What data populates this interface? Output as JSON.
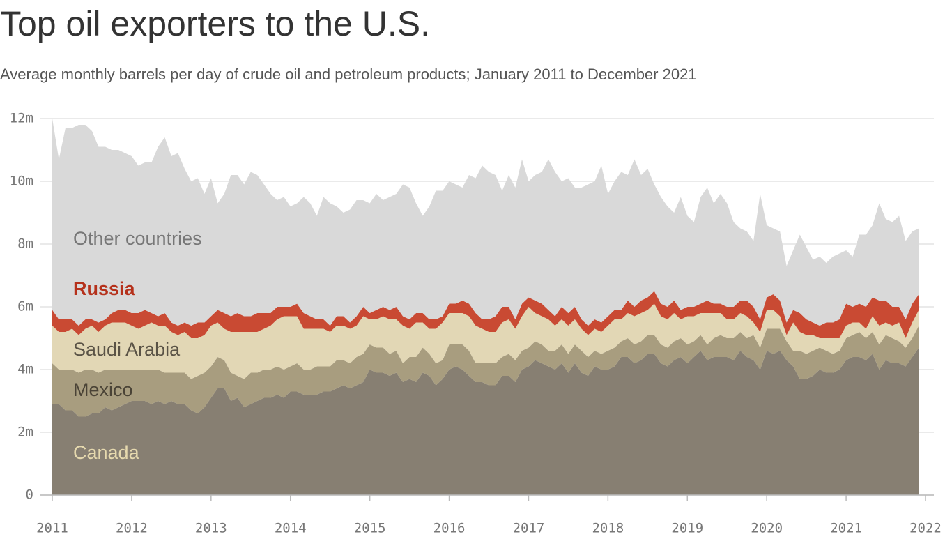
{
  "chart_data": {
    "type": "stacked-area",
    "title": "Top oil exporters to the U.S.",
    "subtitle": "Average monthly barrels per day of crude oil and petroleum products; January 2011 to December 2021",
    "x": [
      2011,
      2011.083,
      2011.167,
      2011.25,
      2011.333,
      2011.417,
      2011.5,
      2011.583,
      2011.667,
      2011.75,
      2011.833,
      2011.917,
      2012,
      2012.083,
      2012.167,
      2012.25,
      2012.333,
      2012.417,
      2012.5,
      2012.583,
      2012.667,
      2012.75,
      2012.833,
      2012.917,
      2013,
      2013.083,
      2013.167,
      2013.25,
      2013.333,
      2013.417,
      2013.5,
      2013.583,
      2013.667,
      2013.75,
      2013.833,
      2013.917,
      2014,
      2014.083,
      2014.167,
      2014.25,
      2014.333,
      2014.417,
      2014.5,
      2014.583,
      2014.667,
      2014.75,
      2014.833,
      2014.917,
      2015,
      2015.083,
      2015.167,
      2015.25,
      2015.333,
      2015.417,
      2015.5,
      2015.583,
      2015.667,
      2015.75,
      2015.833,
      2015.917,
      2016,
      2016.083,
      2016.167,
      2016.25,
      2016.333,
      2016.417,
      2016.5,
      2016.583,
      2016.667,
      2016.75,
      2016.833,
      2016.917,
      2017,
      2017.083,
      2017.167,
      2017.25,
      2017.333,
      2017.417,
      2017.5,
      2017.583,
      2017.667,
      2017.75,
      2017.833,
      2017.917,
      2018,
      2018.083,
      2018.167,
      2018.25,
      2018.333,
      2018.417,
      2018.5,
      2018.583,
      2018.667,
      2018.75,
      2018.833,
      2018.917,
      2019,
      2019.083,
      2019.167,
      2019.25,
      2019.333,
      2019.417,
      2019.5,
      2019.583,
      2019.667,
      2019.75,
      2019.833,
      2019.917,
      2020,
      2020.083,
      2020.167,
      2020.25,
      2020.333,
      2020.417,
      2020.5,
      2020.583,
      2020.667,
      2020.75,
      2020.833,
      2020.917,
      2021,
      2021.083,
      2021.167,
      2021.25,
      2021.333,
      2021.417,
      2021.5,
      2021.583,
      2021.667,
      2021.75,
      2021.833,
      2021.917
    ],
    "series": [
      {
        "name": "Canada",
        "color": "#877f72",
        "label_color": "#e6d9ae",
        "values": [
          2.9,
          2.9,
          2.7,
          2.7,
          2.5,
          2.5,
          2.6,
          2.6,
          2.8,
          2.7,
          2.8,
          2.9,
          3.0,
          3.0,
          3.0,
          2.9,
          3.0,
          2.9,
          3.0,
          2.9,
          2.9,
          2.7,
          2.6,
          2.8,
          3.1,
          3.4,
          3.4,
          3.0,
          3.1,
          2.8,
          2.9,
          3.0,
          3.1,
          3.1,
          3.2,
          3.1,
          3.3,
          3.3,
          3.2,
          3.2,
          3.2,
          3.3,
          3.3,
          3.4,
          3.5,
          3.4,
          3.5,
          3.6,
          4.0,
          3.9,
          3.9,
          3.8,
          3.9,
          3.6,
          3.7,
          3.6,
          3.9,
          3.8,
          3.5,
          3.7,
          4.0,
          4.1,
          4.0,
          3.8,
          3.6,
          3.6,
          3.5,
          3.5,
          3.8,
          3.8,
          3.6,
          4.0,
          4.1,
          4.3,
          4.2,
          4.1,
          4.0,
          4.2,
          3.9,
          4.2,
          3.9,
          3.8,
          4.1,
          4.0,
          4.0,
          4.1,
          4.4,
          4.4,
          4.2,
          4.3,
          4.5,
          4.5,
          4.2,
          4.1,
          4.3,
          4.4,
          4.2,
          4.4,
          4.6,
          4.3,
          4.4,
          4.4,
          4.4,
          4.3,
          4.6,
          4.4,
          4.3,
          4.0,
          4.6,
          4.5,
          4.6,
          4.3,
          4.1,
          3.7,
          3.7,
          3.8,
          4.0,
          3.9,
          3.9,
          4.0,
          4.3,
          4.4,
          4.4,
          4.3,
          4.5,
          4.0,
          4.3,
          4.2,
          4.2,
          4.1,
          4.4,
          4.7
        ]
      },
      {
        "name": "Mexico",
        "color": "#a89d7f",
        "label_color": "#4a4336",
        "values": [
          1.3,
          1.1,
          1.3,
          1.3,
          1.4,
          1.5,
          1.4,
          1.3,
          1.2,
          1.3,
          1.2,
          1.1,
          1.0,
          1.0,
          1.0,
          1.1,
          1.0,
          1.0,
          0.9,
          1.0,
          1.0,
          1.0,
          1.2,
          1.1,
          1.0,
          1.0,
          0.9,
          0.9,
          0.7,
          0.9,
          1.0,
          0.9,
          0.9,
          0.9,
          0.9,
          0.9,
          0.8,
          0.9,
          0.8,
          0.8,
          0.9,
          0.8,
          0.8,
          0.9,
          0.8,
          0.8,
          0.9,
          0.9,
          0.8,
          0.8,
          0.8,
          0.7,
          0.7,
          0.6,
          0.7,
          0.8,
          0.8,
          0.7,
          0.7,
          0.6,
          0.8,
          0.7,
          0.8,
          0.8,
          0.6,
          0.6,
          0.7,
          0.7,
          0.6,
          0.7,
          0.7,
          0.6,
          0.6,
          0.6,
          0.6,
          0.5,
          0.6,
          0.6,
          0.6,
          0.6,
          0.7,
          0.6,
          0.5,
          0.5,
          0.6,
          0.6,
          0.5,
          0.6,
          0.6,
          0.6,
          0.6,
          0.6,
          0.6,
          0.6,
          0.6,
          0.6,
          0.6,
          0.5,
          0.5,
          0.5,
          0.6,
          0.7,
          0.6,
          0.7,
          0.6,
          0.6,
          0.8,
          0.7,
          0.7,
          0.8,
          0.7,
          0.6,
          0.5,
          0.9,
          0.8,
          0.8,
          0.7,
          0.7,
          0.6,
          0.6,
          0.7,
          0.7,
          0.8,
          0.7,
          0.7,
          0.8,
          0.8,
          0.8,
          0.7,
          0.6,
          0.6,
          0.7
        ]
      },
      {
        "name": "Saudi Arabia",
        "color": "#e2d7b5",
        "label_color": "#5a5346",
        "values": [
          1.2,
          1.2,
          1.2,
          1.3,
          1.2,
          1.3,
          1.4,
          1.3,
          1.4,
          1.5,
          1.5,
          1.5,
          1.4,
          1.3,
          1.4,
          1.5,
          1.4,
          1.5,
          1.3,
          1.2,
          1.3,
          1.3,
          1.2,
          1.2,
          1.3,
          1.1,
          1.0,
          1.3,
          1.4,
          1.5,
          1.3,
          1.3,
          1.3,
          1.4,
          1.5,
          1.7,
          1.6,
          1.5,
          1.3,
          1.3,
          1.2,
          1.2,
          1.1,
          1.1,
          1.1,
          1.1,
          1.0,
          1.2,
          0.8,
          0.9,
          1.0,
          1.1,
          1.0,
          1.2,
          0.9,
          1.1,
          0.8,
          0.8,
          1.1,
          1.2,
          1.0,
          1.0,
          1.0,
          1.1,
          1.2,
          1.1,
          1.0,
          1.0,
          1.1,
          1.1,
          1.0,
          1.1,
          1.3,
          0.9,
          0.9,
          1.0,
          0.8,
          0.8,
          0.9,
          0.8,
          0.7,
          0.7,
          0.7,
          0.7,
          0.8,
          0.9,
          0.7,
          0.8,
          0.9,
          0.9,
          0.8,
          1.0,
          0.9,
          0.9,
          0.9,
          0.6,
          0.9,
          0.8,
          0.7,
          1.0,
          0.8,
          0.7,
          0.6,
          0.6,
          0.6,
          0.7,
          0.4,
          0.5,
          0.6,
          0.6,
          0.4,
          0.2,
          0.9,
          0.6,
          0.6,
          0.5,
          0.3,
          0.4,
          0.5,
          0.4,
          0.4,
          0.4,
          0.3,
          0.3,
          0.5,
          0.6,
          0.4,
          0.4,
          0.6,
          0.3,
          0.5,
          0.5
        ]
      },
      {
        "name": "Russia",
        "color": "#c94a33",
        "label_color": "#b5311b",
        "values": [
          0.5,
          0.4,
          0.4,
          0.3,
          0.3,
          0.3,
          0.2,
          0.3,
          0.2,
          0.3,
          0.4,
          0.4,
          0.4,
          0.5,
          0.5,
          0.3,
          0.3,
          0.4,
          0.3,
          0.3,
          0.3,
          0.4,
          0.5,
          0.4,
          0.3,
          0.4,
          0.5,
          0.5,
          0.6,
          0.5,
          0.5,
          0.6,
          0.5,
          0.4,
          0.4,
          0.3,
          0.3,
          0.4,
          0.5,
          0.4,
          0.3,
          0.3,
          0.2,
          0.3,
          0.3,
          0.2,
          0.3,
          0.3,
          0.2,
          0.3,
          0.3,
          0.3,
          0.4,
          0.3,
          0.3,
          0.3,
          0.3,
          0.3,
          0.3,
          0.2,
          0.3,
          0.3,
          0.4,
          0.4,
          0.4,
          0.3,
          0.4,
          0.5,
          0.5,
          0.4,
          0.3,
          0.4,
          0.3,
          0.4,
          0.4,
          0.3,
          0.3,
          0.4,
          0.4,
          0.4,
          0.3,
          0.3,
          0.3,
          0.3,
          0.3,
          0.3,
          0.3,
          0.4,
          0.3,
          0.4,
          0.4,
          0.4,
          0.4,
          0.4,
          0.4,
          0.3,
          0.3,
          0.3,
          0.3,
          0.4,
          0.3,
          0.3,
          0.4,
          0.4,
          0.4,
          0.5,
          0.5,
          0.4,
          0.4,
          0.5,
          0.5,
          0.4,
          0.4,
          0.6,
          0.5,
          0.4,
          0.4,
          0.5,
          0.5,
          0.6,
          0.7,
          0.5,
          0.6,
          0.7,
          0.6,
          0.8,
          0.7,
          0.6,
          0.5,
          0.6,
          0.6,
          0.5
        ]
      },
      {
        "name": "Other countries",
        "color": "#d9d9d9",
        "label_color": "#777777",
        "values": [
          6.1,
          5.1,
          6.1,
          6.1,
          6.4,
          6.2,
          6.0,
          5.6,
          5.5,
          5.2,
          5.1,
          5.0,
          5.0,
          4.7,
          4.7,
          4.8,
          5.4,
          5.6,
          5.3,
          5.5,
          4.9,
          4.6,
          4.6,
          4.1,
          4.4,
          3.4,
          3.8,
          4.5,
          4.4,
          4.2,
          4.6,
          4.4,
          4.1,
          3.8,
          3.4,
          3.5,
          3.2,
          3.2,
          3.7,
          3.6,
          3.3,
          3.9,
          3.9,
          3.5,
          3.3,
          3.6,
          3.7,
          3.4,
          3.5,
          3.7,
          3.4,
          3.6,
          3.6,
          4.2,
          4.2,
          3.5,
          3.1,
          3.6,
          4.1,
          4.0,
          3.9,
          3.8,
          3.6,
          4.1,
          4.3,
          4.9,
          4.7,
          4.5,
          3.7,
          4.2,
          4.2,
          4.6,
          3.7,
          4.0,
          4.2,
          4.8,
          4.6,
          4.0,
          4.3,
          3.8,
          4.2,
          4.5,
          4.4,
          5.0,
          3.9,
          4.1,
          4.4,
          4.0,
          4.7,
          4.0,
          4.1,
          3.4,
          3.4,
          3.2,
          2.8,
          3.6,
          2.9,
          2.7,
          3.4,
          3.6,
          3.2,
          3.5,
          3.3,
          2.7,
          2.3,
          2.2,
          2.1,
          4.0,
          2.3,
          2.1,
          2.2,
          1.8,
          1.9,
          2.5,
          2.3,
          2.0,
          2.2,
          1.9,
          2.1,
          2.1,
          1.7,
          1.6,
          2.2,
          2.3,
          2.3,
          3.1,
          2.6,
          2.7,
          2.9,
          2.5,
          2.3,
          2.1
        ]
      }
    ],
    "xlim": [
      2011,
      2022
    ],
    "xticks": [
      2011,
      2012,
      2013,
      2014,
      2015,
      2016,
      2017,
      2018,
      2019,
      2020,
      2021,
      2022
    ],
    "ylim": [
      0,
      12
    ],
    "yticks": [
      0,
      {
        "value": 2,
        "label": "2m"
      },
      {
        "value": 4,
        "label": "4m"
      },
      {
        "value": 6,
        "label": "6m"
      },
      {
        "value": 8,
        "label": "8m"
      },
      {
        "value": 10,
        "label": "10m"
      },
      {
        "value": 12,
        "label": "12m"
      }
    ],
    "grid": true
  }
}
